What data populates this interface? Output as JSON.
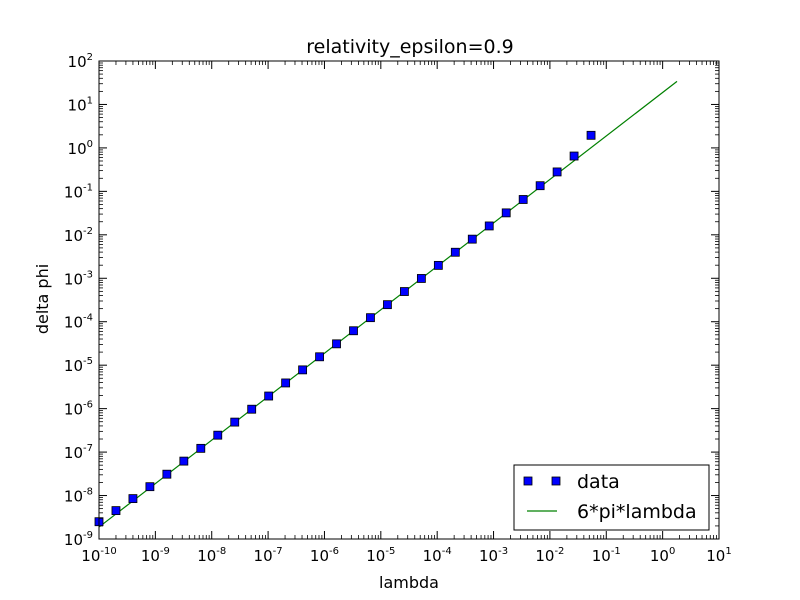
{
  "chart_data": {
    "type": "scatter",
    "title": "relativity_epsilon=0.9",
    "xlabel": "lambda",
    "ylabel": "delta phi",
    "xscale": "log",
    "yscale": "log",
    "xlim": [
      1e-10,
      10
    ],
    "ylim": [
      1e-09,
      100
    ],
    "x_tick_labels": [
      "10-10",
      "10-9",
      "10-8",
      "10-7",
      "10-6",
      "10-5",
      "10-4",
      "10-3",
      "10-2",
      "10-1",
      "100",
      "101"
    ],
    "y_tick_labels": [
      "10-9",
      "10-8",
      "10-7",
      "10-6",
      "10-5",
      "10-4",
      "10-3",
      "10-2",
      "10-1",
      "100",
      "101",
      "102"
    ],
    "grid": false,
    "legend_position": "lower-right",
    "series": [
      {
        "name": "data",
        "kind": "scatter",
        "marker": "square",
        "color": "#0000ff",
        "x": [
          1e-10,
          2e-10,
          4e-10,
          8e-10,
          1.6e-09,
          3.2e-09,
          6.4e-09,
          1.28e-08,
          2.56e-08,
          5.12e-08,
          1.024e-07,
          2.048e-07,
          4.096e-07,
          8.192e-07,
          1.6384e-06,
          3.2768e-06,
          6.5536e-06,
          1.31072e-05,
          2.62144e-05,
          5.24288e-05,
          0.0001048576,
          0.0002097152,
          0.0004194304,
          0.0008388608,
          0.0016777216,
          0.0033554432,
          0.0067108864,
          0.0134217728,
          0.0268435456,
          0.0536870912
        ],
        "y": [
          2.5e-09,
          4.5e-09,
          8.5e-09,
          1.6e-08,
          3.1e-08,
          6.2e-08,
          1.22e-07,
          2.45e-07,
          4.9e-07,
          9.7e-07,
          1.95e-06,
          3.9e-06,
          7.8e-06,
          1.56e-05,
          3.1e-05,
          6.2e-05,
          0.000124,
          0.000247,
          0.000495,
          0.00099,
          0.00198,
          0.00397,
          0.00795,
          0.016,
          0.032,
          0.065,
          0.135,
          0.28,
          0.65,
          1.95
        ]
      },
      {
        "name": "6*pi*lambda",
        "kind": "line",
        "color": "#008000",
        "x": [
          1e-10,
          1.8
        ],
        "y": [
          1.885e-09,
          33.9
        ]
      }
    ]
  }
}
